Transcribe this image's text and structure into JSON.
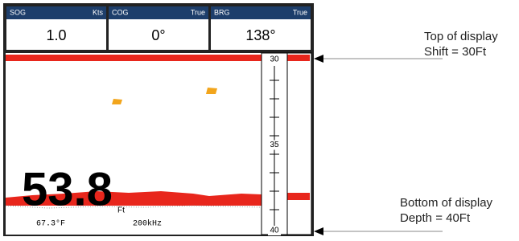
{
  "panels": [
    {
      "label": "SOG",
      "unit": "Kts",
      "value": "1.0"
    },
    {
      "label": "COG",
      "unit": "True",
      "value": "0°"
    },
    {
      "label": "BRG",
      "unit": "True",
      "value": "138°"
    }
  ],
  "display": {
    "scale": [
      30,
      35,
      40
    ],
    "depth": "53.8",
    "depth_unit": "Ft",
    "temperature": "67.3°F",
    "frequency": "200kHz"
  },
  "annotations": {
    "top": {
      "title": "Top of display",
      "detail": "Shift = 30Ft"
    },
    "bottom": {
      "title": "Bottom of display",
      "detail": "Depth = 40Ft"
    }
  }
}
